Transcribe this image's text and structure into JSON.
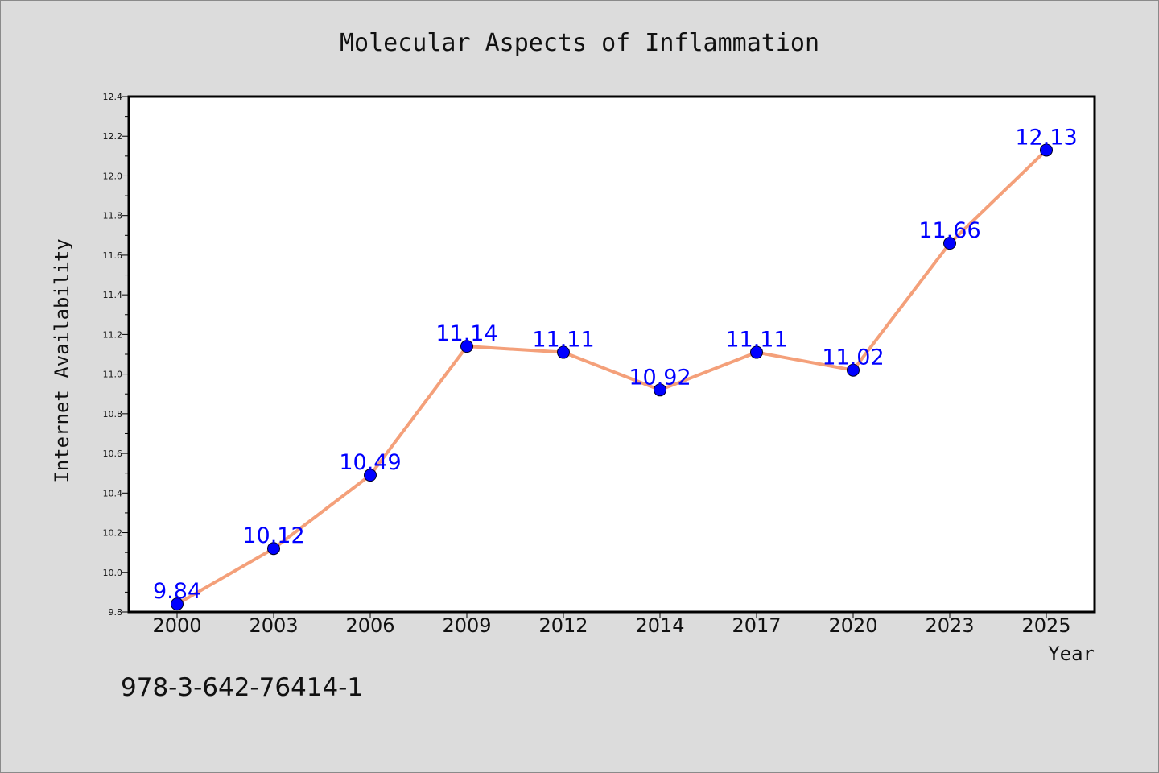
{
  "chart_data": {
    "type": "line",
    "title": "Molecular Aspects of Inflammation",
    "xlabel": "Year",
    "ylabel": "Internet Availability",
    "categories": [
      "2000",
      "2003",
      "2006",
      "2009",
      "2012",
      "2014",
      "2017",
      "2020",
      "2023",
      "2025"
    ],
    "series": [
      {
        "values": [
          9.84,
          10.12,
          10.49,
          11.14,
          11.11,
          10.92,
          11.11,
          11.02,
          11.66,
          12.13
        ],
        "labels": [
          "9.84",
          "10.12",
          "10.49",
          "11.14",
          "11.11",
          "10.92",
          "11.11",
          "11.02",
          "11.66",
          "12.13"
        ]
      }
    ],
    "ylim": [
      9.8,
      12.4
    ],
    "yticks": [
      9.8,
      10.0,
      10.2,
      10.4,
      10.6,
      10.8,
      11.0,
      11.2,
      11.4,
      11.6,
      11.8,
      12.0,
      12.2,
      12.4
    ],
    "ytick_labels": [
      "9.8",
      "10.0",
      "10.2",
      "10.4",
      "10.6",
      "10.8",
      "11.0",
      "11.2",
      "11.4",
      "11.6",
      "11.8",
      "12.0",
      "12.2",
      "12.4"
    ],
    "grid": false,
    "colors": {
      "line": "#f4a07a",
      "marker": "#0000ff",
      "data_label": "#0000ff",
      "plot_background": "#ffffff",
      "figure_background": "#dcdcdc"
    }
  },
  "footer": {
    "code": "978-3-642-76414-1"
  }
}
